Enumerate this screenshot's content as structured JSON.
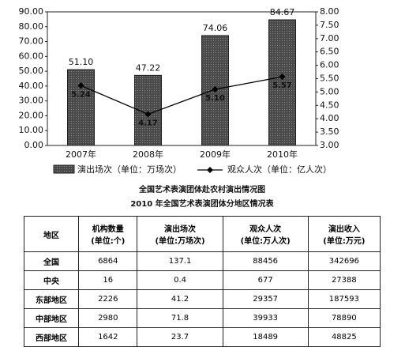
{
  "chart_data": {
    "type": "bar-line",
    "title": "全国艺术表演团体赴农村演出情况图",
    "categories": [
      "2007年",
      "2008年",
      "2009年",
      "2010年"
    ],
    "series": [
      {
        "name": "演出场次（单位：万场次）",
        "color": "#4a4a4a",
        "values": [
          51.1,
          47.22,
          74.06,
          84.67
        ],
        "value_labels": [
          "51.10",
          "47.22",
          "74.06",
          "84.67"
        ]
      },
      {
        "name": "观众人次（单位：亿人次）",
        "color": "#000000",
        "axis": "y2",
        "values": [
          5.24,
          4.17,
          5.1,
          5.57
        ],
        "value_labels": [
          "5.24",
          "4.17",
          "5.10",
          "5.57"
        ]
      }
    ],
    "ylim": [
      0,
      90
    ],
    "yticks": [
      {
        "value": 0,
        "label": "0.00"
      },
      {
        "value": 10,
        "label": "10.00"
      },
      {
        "value": 20,
        "label": "20.00"
      },
      {
        "value": 30,
        "label": "30.00"
      },
      {
        "value": 40,
        "label": "40.00"
      },
      {
        "value": 50,
        "label": "50.00"
      },
      {
        "value": 60,
        "label": "60.00"
      },
      {
        "value": 70,
        "label": "70.00"
      },
      {
        "value": 80,
        "label": "80.00"
      },
      {
        "value": 90,
        "label": "90.00"
      }
    ],
    "y2lim": [
      3,
      8
    ],
    "y2ticks": [
      {
        "value": 3,
        "label": "3.00"
      },
      {
        "value": 3.5,
        "label": "3.50"
      },
      {
        "value": 4,
        "label": "4.00"
      },
      {
        "value": 4.5,
        "label": "4.50"
      },
      {
        "value": 5,
        "label": "5.00"
      },
      {
        "value": 5.5,
        "label": "5.50"
      },
      {
        "value": 6,
        "label": "6.00"
      },
      {
        "value": 6.5,
        "label": "6.50"
      },
      {
        "value": 7,
        "label": "7.00"
      },
      {
        "value": 7.5,
        "label": "7.50"
      },
      {
        "value": 8,
        "label": "8.00"
      }
    ]
  },
  "table": {
    "title": "2010 年全国艺术表演团体分地区情况表",
    "headers": [
      [
        "地区"
      ],
      [
        "机构数量",
        "(单位:个)"
      ],
      [
        "演出场次",
        "(单位:万场次)"
      ],
      [
        "观众人次",
        "(单位:万人次)"
      ],
      [
        "演出收入",
        "(单位:万元)"
      ]
    ],
    "rows": [
      [
        "全国",
        6864,
        137.1,
        88456,
        342696
      ],
      [
        "中央",
        16,
        0.4,
        677,
        27388
      ],
      [
        "东部地区",
        2226,
        41.2,
        29357,
        187593
      ],
      [
        "中部地区",
        2980,
        71.8,
        39933,
        78890
      ],
      [
        "西部地区",
        1642,
        23.7,
        18489,
        48825
      ]
    ]
  }
}
